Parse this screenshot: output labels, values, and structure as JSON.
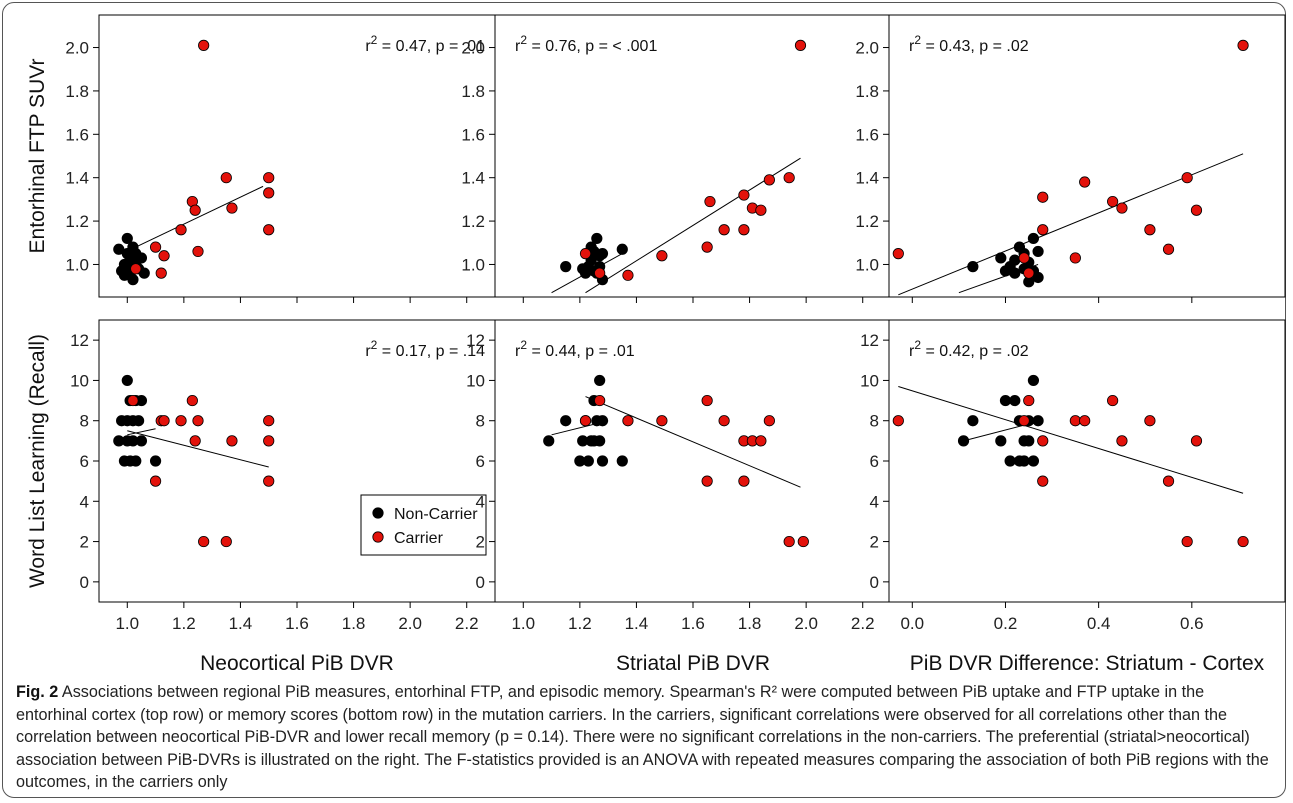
{
  "figure_label": "Fig. 2",
  "caption_text": "Associations between regional PiB measures, entorhinal FTP, and episodic memory. Spearman's R² were computed between PiB uptake and FTP uptake in the entorhinal cortex (top row) or memory scores (bottom row) in the mutation carriers. In the carriers, significant correlations were observed for all correlations other than the correlation between neocortical PiB-DVR and lower recall memory (p = 0.14). There were no significant correlations in the non-carriers. The preferential (striatal>neocortical) association between PiB-DVRs is illustrated on the right. The F-statistics provided is an ANOVA with repeated measures comparing the association of both PiB regions with the outcomes, in the carriers only",
  "colors": {
    "non_carrier": "#000000",
    "carrier": "#e3120b"
  },
  "legend": {
    "non_carrier": "Non-Carrier",
    "carrier": "Carrier"
  },
  "chart_data": [
    {
      "type": "scatter",
      "row": "top",
      "col": 0,
      "xlabel": "",
      "ylabel": "Entorhinal FTP SUVr",
      "xlim": [
        0.9,
        2.3
      ],
      "ylim": [
        0.85,
        2.15
      ],
      "xticks": [
        "1.0",
        "1.2",
        "1.4",
        "1.6",
        "1.8",
        "2.0",
        "2.2"
      ],
      "yticks": [
        "1.0",
        "1.2",
        "1.4",
        "1.6",
        "1.8",
        "2.0"
      ],
      "annotation": {
        "r2": "0.47",
        "p": ".01",
        "pos": "right"
      },
      "series": [
        {
          "name": "Non-Carrier",
          "points": [
            [
              0.97,
              1.07
            ],
            [
              0.98,
              0.97
            ],
            [
              0.99,
              1.0
            ],
            [
              1.0,
              1.12
            ],
            [
              1.0,
              1.05
            ],
            [
              1.0,
              0.99
            ],
            [
              1.01,
              0.96
            ],
            [
              1.01,
              1.02
            ],
            [
              1.02,
              1.08
            ],
            [
              1.02,
              0.93
            ],
            [
              1.03,
              1.0
            ],
            [
              1.03,
              1.05
            ],
            [
              1.04,
              0.98
            ],
            [
              1.05,
              1.03
            ],
            [
              1.06,
              0.96
            ],
            [
              0.99,
              0.95
            ]
          ]
        },
        {
          "name": "Carrier",
          "points": [
            [
              1.03,
              0.98
            ],
            [
              1.1,
              1.08
            ],
            [
              1.12,
              0.96
            ],
            [
              1.13,
              1.04
            ],
            [
              1.19,
              1.16
            ],
            [
              1.23,
              1.29
            ],
            [
              1.24,
              1.25
            ],
            [
              1.25,
              1.06
            ],
            [
              1.27,
              2.01
            ],
            [
              1.35,
              1.4
            ],
            [
              1.37,
              1.26
            ],
            [
              1.5,
              1.4
            ],
            [
              1.5,
              1.33
            ],
            [
              1.5,
              1.16
            ]
          ]
        }
      ],
      "fits": [
        {
          "series": "Carrier",
          "x": [
            1.03,
            1.48
          ],
          "y": [
            1.08,
            1.36
          ]
        }
      ]
    },
    {
      "type": "scatter",
      "row": "top",
      "col": 1,
      "xlabel": "",
      "ylabel": "",
      "xlim": [
        0.9,
        2.3
      ],
      "ylim": [
        0.85,
        2.15
      ],
      "xticks": [
        "1.0",
        "1.2",
        "1.4",
        "1.6",
        "1.8",
        "2.0",
        "2.2"
      ],
      "yticks": [
        "1.0",
        "1.2",
        "1.4",
        "1.6",
        "1.8",
        "2.0"
      ],
      "annotation": {
        "r2": "0.76",
        "p": "< .001",
        "pos": "left"
      },
      "series": [
        {
          "name": "Non-Carrier",
          "points": [
            [
              1.15,
              0.99
            ],
            [
              1.21,
              0.98
            ],
            [
              1.22,
              0.96
            ],
            [
              1.23,
              0.99
            ],
            [
              1.24,
              1.02
            ],
            [
              1.25,
              1.06
            ],
            [
              1.25,
              0.97
            ],
            [
              1.26,
              1.12
            ],
            [
              1.27,
              1.04
            ],
            [
              1.27,
              0.99
            ],
            [
              1.28,
              1.05
            ],
            [
              1.28,
              0.93
            ],
            [
              1.35,
              1.07
            ],
            [
              1.26,
              0.96
            ],
            [
              1.24,
              1.08
            ]
          ]
        },
        {
          "name": "Carrier",
          "points": [
            [
              1.22,
              1.05
            ],
            [
              1.27,
              0.96
            ],
            [
              1.37,
              0.95
            ],
            [
              1.49,
              1.04
            ],
            [
              1.65,
              1.08
            ],
            [
              1.66,
              1.29
            ],
            [
              1.71,
              1.16
            ],
            [
              1.78,
              1.16
            ],
            [
              1.78,
              1.32
            ],
            [
              1.81,
              1.26
            ],
            [
              1.84,
              1.25
            ],
            [
              1.87,
              1.39
            ],
            [
              1.94,
              1.4
            ],
            [
              1.98,
              2.01
            ]
          ]
        }
      ],
      "fits": [
        {
          "series": "Non-Carrier",
          "x": [
            1.1,
            1.35
          ],
          "y": [
            0.87,
            1.05
          ]
        },
        {
          "series": "Carrier",
          "x": [
            1.22,
            1.98
          ],
          "y": [
            0.87,
            1.49
          ]
        }
      ]
    },
    {
      "type": "scatter",
      "row": "top",
      "col": 2,
      "xlabel": "",
      "ylabel": "",
      "xlim": [
        -0.05,
        0.8
      ],
      "ylim": [
        0.85,
        2.15
      ],
      "xticks": [
        "0.0",
        "0.2",
        "0.4",
        "0.6"
      ],
      "yticks": [
        "1.0",
        "1.2",
        "1.4",
        "1.6",
        "1.8",
        "2.0"
      ],
      "annotation": {
        "r2": "0.43",
        "p": ".02",
        "pos": "left"
      },
      "series": [
        {
          "name": "Non-Carrier",
          "points": [
            [
              0.13,
              0.99
            ],
            [
              0.19,
              1.03
            ],
            [
              0.2,
              0.97
            ],
            [
              0.21,
              0.99
            ],
            [
              0.22,
              0.96
            ],
            [
              0.23,
              1.08
            ],
            [
              0.24,
              1.05
            ],
            [
              0.25,
              1.01
            ],
            [
              0.25,
              0.92
            ],
            [
              0.26,
              1.12
            ],
            [
              0.26,
              0.97
            ],
            [
              0.27,
              1.06
            ],
            [
              0.27,
              0.94
            ],
            [
              0.22,
              1.02
            ],
            [
              0.24,
              0.98
            ]
          ]
        },
        {
          "name": "Carrier",
          "points": [
            [
              -0.03,
              1.05
            ],
            [
              0.24,
              1.03
            ],
            [
              0.25,
              0.96
            ],
            [
              0.28,
              1.31
            ],
            [
              0.28,
              1.16
            ],
            [
              0.35,
              1.03
            ],
            [
              0.37,
              1.38
            ],
            [
              0.43,
              1.29
            ],
            [
              0.45,
              1.26
            ],
            [
              0.51,
              1.16
            ],
            [
              0.55,
              1.07
            ],
            [
              0.59,
              1.4
            ],
            [
              0.61,
              1.25
            ],
            [
              0.71,
              2.01
            ]
          ]
        }
      ],
      "fits": [
        {
          "series": "Carrier",
          "x": [
            -0.03,
            0.71
          ],
          "y": [
            0.86,
            1.51
          ]
        },
        {
          "series": "Non-Carrier",
          "x": [
            0.1,
            0.27
          ],
          "y": [
            0.87,
            1.0
          ]
        }
      ]
    },
    {
      "type": "scatter",
      "row": "bottom",
      "col": 0,
      "xlabel": "Neocortical PiB DVR",
      "ylabel": "Word List Learning (Recall)",
      "xlim": [
        0.9,
        2.3
      ],
      "ylim": [
        -1,
        13
      ],
      "xticks": [
        "1.0",
        "1.2",
        "1.4",
        "1.6",
        "1.8",
        "2.0",
        "2.2"
      ],
      "yticks": [
        "0",
        "2",
        "4",
        "6",
        "8",
        "10",
        "12"
      ],
      "annotation": {
        "r2": "0.17",
        "p": ".14",
        "pos": "right"
      },
      "series": [
        {
          "name": "Non-Carrier",
          "points": [
            [
              0.97,
              7
            ],
            [
              0.98,
              8
            ],
            [
              0.99,
              6
            ],
            [
              1.0,
              10
            ],
            [
              1.0,
              8
            ],
            [
              1.0,
              7
            ],
            [
              1.01,
              6
            ],
            [
              1.01,
              9
            ],
            [
              1.02,
              8
            ],
            [
              1.02,
              7
            ],
            [
              1.03,
              9
            ],
            [
              1.03,
              6
            ],
            [
              1.04,
              8
            ],
            [
              1.05,
              9
            ],
            [
              1.05,
              7
            ],
            [
              1.1,
              6
            ]
          ]
        },
        {
          "name": "Carrier",
          "points": [
            [
              1.02,
              9
            ],
            [
              1.1,
              5
            ],
            [
              1.12,
              8
            ],
            [
              1.13,
              8
            ],
            [
              1.19,
              8
            ],
            [
              1.23,
              9
            ],
            [
              1.24,
              7
            ],
            [
              1.25,
              8
            ],
            [
              1.27,
              2
            ],
            [
              1.35,
              2
            ],
            [
              1.37,
              7
            ],
            [
              1.5,
              8
            ],
            [
              1.5,
              7
            ],
            [
              1.5,
              5
            ]
          ]
        }
      ],
      "fits": [
        {
          "series": "Carrier",
          "x": [
            1.0,
            1.5
          ],
          "y": [
            7.5,
            5.7
          ]
        },
        {
          "series": "Non-Carrier",
          "x": [
            1.0,
            1.1
          ],
          "y": [
            7.3,
            7.6
          ]
        }
      ]
    },
    {
      "type": "scatter",
      "row": "bottom",
      "col": 1,
      "xlabel": "Striatal PiB DVR",
      "ylabel": "",
      "xlim": [
        0.9,
        2.3
      ],
      "ylim": [
        -1,
        13
      ],
      "xticks": [
        "1.0",
        "1.2",
        "1.4",
        "1.6",
        "1.8",
        "2.0",
        "2.2"
      ],
      "yticks": [
        "0",
        "2",
        "4",
        "6",
        "8",
        "10",
        "12"
      ],
      "annotation": {
        "r2": "0.44",
        "p": ".01",
        "pos": "left"
      },
      "series": [
        {
          "name": "Non-Carrier",
          "points": [
            [
              1.09,
              7
            ],
            [
              1.15,
              8
            ],
            [
              1.2,
              6
            ],
            [
              1.21,
              7
            ],
            [
              1.22,
              8
            ],
            [
              1.23,
              6
            ],
            [
              1.24,
              7
            ],
            [
              1.25,
              9
            ],
            [
              1.26,
              8
            ],
            [
              1.27,
              10
            ],
            [
              1.27,
              7
            ],
            [
              1.28,
              6
            ],
            [
              1.28,
              8
            ],
            [
              1.35,
              6
            ],
            [
              1.25,
              7
            ]
          ]
        },
        {
          "name": "Carrier",
          "points": [
            [
              1.22,
              8
            ],
            [
              1.27,
              9
            ],
            [
              1.37,
              8
            ],
            [
              1.49,
              8
            ],
            [
              1.65,
              9
            ],
            [
              1.65,
              5
            ],
            [
              1.71,
              8
            ],
            [
              1.78,
              7
            ],
            [
              1.78,
              5
            ],
            [
              1.81,
              7
            ],
            [
              1.84,
              7
            ],
            [
              1.87,
              8
            ],
            [
              1.94,
              2
            ],
            [
              1.99,
              2
            ]
          ]
        }
      ],
      "fits": [
        {
          "series": "Non-Carrier",
          "x": [
            1.1,
            1.3
          ],
          "y": [
            7.3,
            8.0
          ]
        },
        {
          "series": "Carrier",
          "x": [
            1.22,
            1.98
          ],
          "y": [
            9.2,
            4.7
          ]
        }
      ]
    },
    {
      "type": "scatter",
      "row": "bottom",
      "col": 2,
      "xlabel": "PiB DVR Difference: Striatum - Cortex",
      "ylabel": "",
      "xlim": [
        -0.05,
        0.8
      ],
      "ylim": [
        -1,
        13
      ],
      "xticks": [
        "0.0",
        "0.2",
        "0.4",
        "0.6"
      ],
      "yticks": [
        "0",
        "2",
        "4",
        "6",
        "8",
        "10",
        "12"
      ],
      "annotation": {
        "r2": "0.42",
        "p": ".02",
        "pos": "left"
      },
      "series": [
        {
          "name": "Non-Carrier",
          "points": [
            [
              0.11,
              7
            ],
            [
              0.13,
              8
            ],
            [
              0.19,
              7
            ],
            [
              0.2,
              9
            ],
            [
              0.21,
              6
            ],
            [
              0.22,
              9
            ],
            [
              0.23,
              8
            ],
            [
              0.24,
              7
            ],
            [
              0.24,
              6
            ],
            [
              0.25,
              8
            ],
            [
              0.26,
              10
            ],
            [
              0.26,
              6
            ],
            [
              0.27,
              8
            ],
            [
              0.23,
              6
            ],
            [
              0.25,
              7
            ]
          ]
        },
        {
          "name": "Carrier",
          "points": [
            [
              -0.03,
              8
            ],
            [
              0.24,
              8
            ],
            [
              0.25,
              9
            ],
            [
              0.28,
              7
            ],
            [
              0.28,
              5
            ],
            [
              0.35,
              8
            ],
            [
              0.37,
              8
            ],
            [
              0.43,
              9
            ],
            [
              0.45,
              7
            ],
            [
              0.51,
              8
            ],
            [
              0.55,
              5
            ],
            [
              0.59,
              2
            ],
            [
              0.61,
              7
            ],
            [
              0.71,
              2
            ]
          ]
        }
      ],
      "fits": [
        {
          "series": "Carrier",
          "x": [
            -0.03,
            0.71
          ],
          "y": [
            9.7,
            4.4
          ]
        },
        {
          "series": "Non-Carrier",
          "x": [
            0.11,
            0.26
          ],
          "y": [
            7.0,
            7.9
          ]
        }
      ]
    }
  ]
}
